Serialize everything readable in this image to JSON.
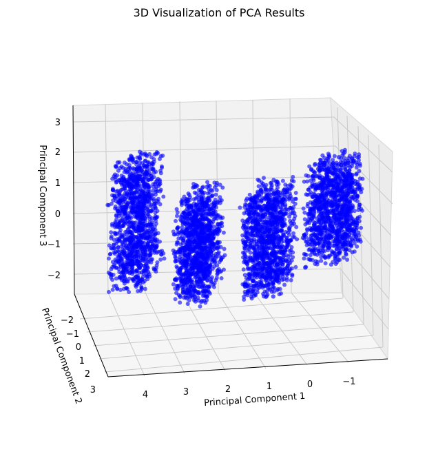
{
  "chart_data": {
    "type": "scatter",
    "projection": "3d",
    "title": "3D Visualization of PCA Results",
    "xlabel": "Principal Component 1",
    "ylabel": "Principal Component 2",
    "zlabel": "Principal Component 3",
    "x_ticks": [
      "4",
      "3",
      "2",
      "1",
      "0",
      "−1"
    ],
    "y_ticks": [
      "−2",
      "−1",
      "0",
      "1",
      "2",
      "3"
    ],
    "z_ticks": [
      "3",
      "2",
      "1",
      "0",
      "−1",
      "−2"
    ],
    "xlim": [
      -1.8,
      4.8
    ],
    "ylim": [
      -2.6,
      3.2
    ],
    "zlim": [
      -2.6,
      3.4
    ],
    "grid": true,
    "marker_color": "#0000ff",
    "series": [
      {
        "clusters": [
          {
            "x": [
              3.6,
              4.5
            ],
            "y": [
              -2.0,
              2.0
            ],
            "z": [
              -2.0,
              2.0
            ],
            "points": [
              [
                4.5,
                0.0,
                2.0
              ],
              [
                4.4,
                0.0,
                1.4
              ],
              [
                4.3,
                0.2,
                0.8
              ],
              [
                4.2,
                0.3,
                0.2
              ],
              [
                4.1,
                0.4,
                -0.5
              ],
              [
                4.0,
                0.5,
                -1.0
              ],
              [
                3.9,
                0.2,
                -0.3
              ],
              [
                3.8,
                0.6,
                -0.8
              ],
              [
                3.7,
                0.0,
                -1.2
              ],
              [
                3.6,
                1.0,
                -1.5
              ]
            ]
          },
          {
            "x": [
              2.0,
              2.8
            ],
            "y": [
              -1.5,
              2.5
            ],
            "z": [
              -2.3,
              1.0
            ],
            "points": [
              [
                2.4,
                0.0,
                1.0
              ],
              [
                2.3,
                0.5,
                0.5
              ],
              [
                2.5,
                0.3,
                -0.2
              ],
              [
                2.2,
                1.0,
                -1.0
              ],
              [
                2.6,
                0.8,
                -1.5
              ],
              [
                2.1,
                1.5,
                -2.0
              ],
              [
                2.7,
                0.0,
                -1.0
              ],
              [
                2.4,
                1.2,
                -2.3
              ]
            ]
          },
          {
            "x": [
              0.2,
              1.2
            ],
            "y": [
              -1.5,
              2.0
            ],
            "z": [
              -2.2,
              1.1
            ],
            "points": [
              [
                0.8,
                0.0,
                1.1
              ],
              [
                0.5,
                0.5,
                0.5
              ],
              [
                1.0,
                0.2,
                0.0
              ],
              [
                0.3,
                1.0,
                -0.8
              ],
              [
                0.9,
                1.2,
                -1.5
              ],
              [
                0.4,
                1.5,
                -2.2
              ],
              [
                1.1,
                -0.5,
                -0.5
              ]
            ]
          },
          {
            "x": [
              -1.4,
              -0.3
            ],
            "y": [
              -2.0,
              1.5
            ],
            "z": [
              -1.2,
              1.9
            ],
            "points": [
              [
                -0.9,
                -1.0,
                1.9
              ],
              [
                -0.7,
                -0.5,
                1.2
              ],
              [
                -1.0,
                0.0,
                0.5
              ],
              [
                -0.5,
                0.5,
                -0.2
              ],
              [
                -1.2,
                1.0,
                -0.8
              ],
              [
                -0.4,
                1.5,
                -1.2
              ]
            ]
          }
        ]
      }
    ]
  }
}
